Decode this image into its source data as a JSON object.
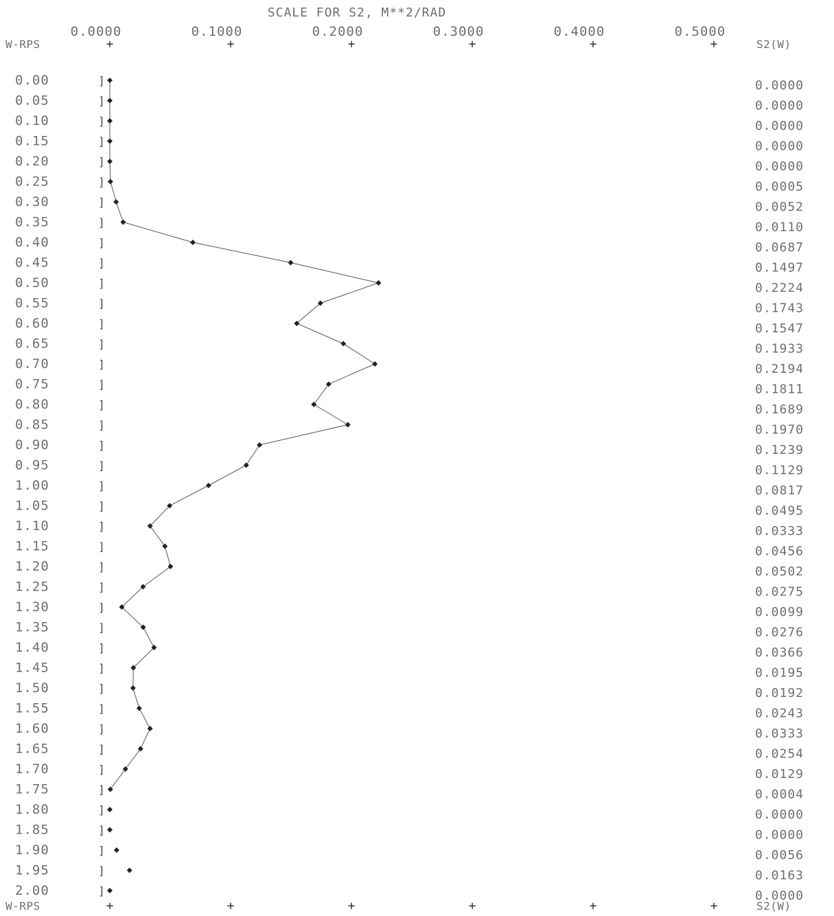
{
  "chart_data": {
    "type": "line",
    "title": "SCALE FOR S2, M**2/RAD",
    "xlabel": "S2(W)",
    "ylabel": "W-RPS",
    "header_left": "W-RPS",
    "header_right": "S2(W)",
    "xlim": [
      0.0,
      0.5
    ],
    "x_scale_labels": [
      "0.0000",
      "0.1000",
      "0.2000",
      "0.3000",
      "0.4000",
      "0.5000"
    ],
    "x_ticks": [
      0.0,
      0.1,
      0.2,
      0.3,
      0.4,
      0.5
    ],
    "w_labels": [
      "0.00",
      "0.05",
      "0.10",
      "0.15",
      "0.20",
      "0.25",
      "0.30",
      "0.35",
      "0.40",
      "0.45",
      "0.50",
      "0.55",
      "0.60",
      "0.65",
      "0.70",
      "0.75",
      "0.80",
      "0.85",
      "0.90",
      "0.95",
      "1.00",
      "1.05",
      "1.10",
      "1.15",
      "1.20",
      "1.25",
      "1.30",
      "1.35",
      "1.40",
      "1.45",
      "1.50",
      "1.55",
      "1.60",
      "1.65",
      "1.70",
      "1.75",
      "1.80",
      "1.85",
      "1.90",
      "1.95",
      "2.00"
    ],
    "w": [
      0.0,
      0.05,
      0.1,
      0.15,
      0.2,
      0.25,
      0.3,
      0.35,
      0.4,
      0.45,
      0.5,
      0.55,
      0.6,
      0.65,
      0.7,
      0.75,
      0.8,
      0.85,
      0.9,
      0.95,
      1.0,
      1.05,
      1.1,
      1.15,
      1.2,
      1.25,
      1.3,
      1.35,
      1.4,
      1.45,
      1.5,
      1.55,
      1.6,
      1.65,
      1.7,
      1.75,
      1.8,
      1.85,
      1.9,
      1.95,
      2.0
    ],
    "s2_labels": [
      "0.0000",
      "0.0000",
      "0.0000",
      "0.0000",
      "0.0000",
      "0.0005",
      "0.0052",
      "0.0110",
      "0.0687",
      "0.1497",
      "0.2224",
      "0.1743",
      "0.1547",
      "0.1933",
      "0.2194",
      "0.1811",
      "0.1689",
      "0.1970",
      "0.1239",
      "0.1129",
      "0.0817",
      "0.0495",
      "0.0333",
      "0.0456",
      "0.0502",
      "0.0275",
      "0.0099",
      "0.0276",
      "0.0366",
      "0.0195",
      "0.0192",
      "0.0243",
      "0.0333",
      "0.0254",
      "0.0129",
      "0.0004",
      "0.0000",
      "0.0000",
      "0.0056",
      "0.0163",
      "0.0000"
    ],
    "s2": [
      0.0,
      0.0,
      0.0,
      0.0,
      0.0,
      0.0005,
      0.0052,
      0.011,
      0.0687,
      0.1497,
      0.2224,
      0.1743,
      0.1547,
      0.1933,
      0.2194,
      0.1811,
      0.1689,
      0.197,
      0.1239,
      0.1129,
      0.0817,
      0.0495,
      0.0333,
      0.0456,
      0.0502,
      0.0275,
      0.0099,
      0.0276,
      0.0366,
      0.0195,
      0.0192,
      0.0243,
      0.0333,
      0.0254,
      0.0129,
      0.0004,
      0.0,
      0.0,
      0.0056,
      0.0163,
      0.0
    ],
    "connected_rows": 36,
    "grid": false,
    "legend": "none"
  }
}
